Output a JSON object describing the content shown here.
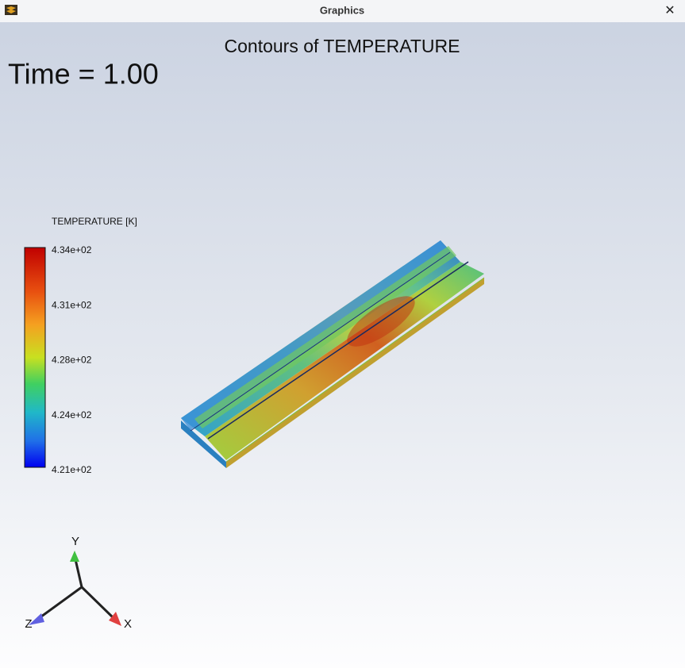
{
  "window": {
    "title": "Graphics",
    "close": "✕"
  },
  "graphics": {
    "title": "Contours of TEMPERATURE",
    "time_label": "Time = 1.00",
    "legend": {
      "title": "TEMPERATURE [K]",
      "labels": [
        "4.34e+02",
        "4.31e+02",
        "4.28e+02",
        "4.24e+02",
        "4.21e+02"
      ]
    },
    "axes": {
      "y": "Y",
      "z": "Z",
      "x": "X"
    }
  }
}
